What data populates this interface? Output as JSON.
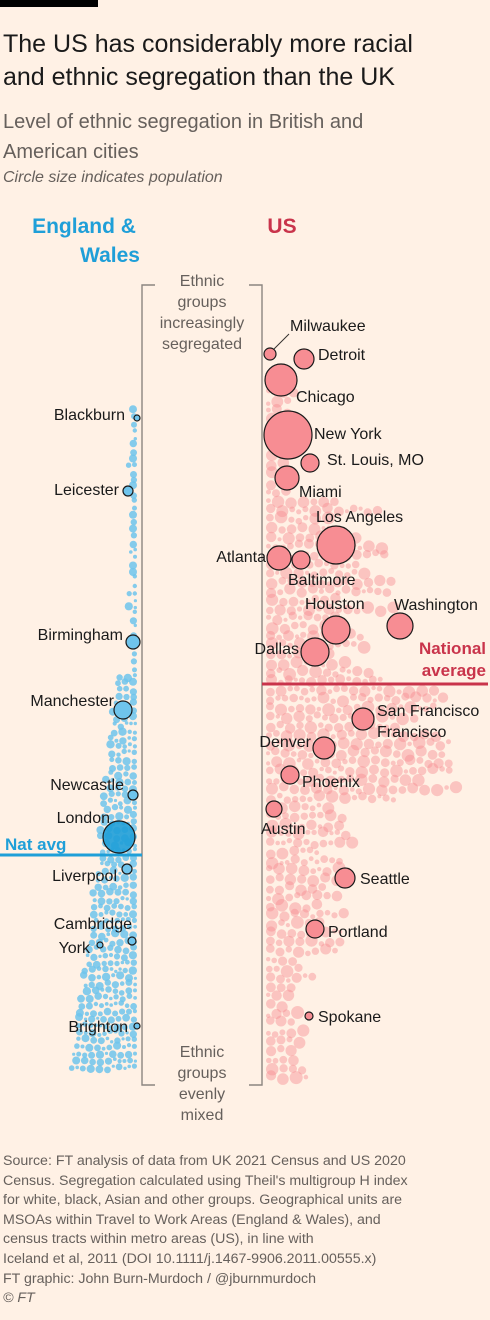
{
  "header": {
    "title_line1": "The US has considerably more racial",
    "title_line2": "and ethnic segregation than the UK",
    "subtitle_line1": "Level of ethnic segregation in British and",
    "subtitle_line2": "American cities",
    "note": "Circle size indicates population"
  },
  "chart_data": {
    "type": "scatter",
    "description_axis": "Vertical axis: segregation level (Theil's multigroup H index), top = more segregated",
    "panels": [
      {
        "name": "England & Wales",
        "name_line1": "England &",
        "name_line2": "Wales",
        "color": "#1F9FD8"
      },
      {
        "name": "US",
        "name_line1": "US",
        "color": "#C9344B"
      }
    ],
    "axis_labels": {
      "top": [
        "Ethnic",
        "groups",
        "increasingly",
        "segregated"
      ],
      "bottom": [
        "Ethnic",
        "groups",
        "evenly",
        "mixed"
      ]
    },
    "reference_lines": [
      {
        "panel": "England & Wales",
        "label": "Nat avg",
        "level": 0.3
      },
      {
        "panel": "US",
        "label_line1": "National",
        "label_line2": "average",
        "level": 0.5
      }
    ],
    "highlighted_cities": {
      "england_wales": [
        {
          "name": "Blackburn",
          "level": 0.78,
          "population": 0.03
        },
        {
          "name": "Leicester",
          "level": 0.7,
          "population": 0.1
        },
        {
          "name": "Birmingham",
          "level": 0.55,
          "population": 0.25
        },
        {
          "name": "Manchester",
          "level": 0.48,
          "population": 0.3
        },
        {
          "name": "Newcastle",
          "level": 0.37,
          "population": 0.1
        },
        {
          "name": "London",
          "level": 0.32,
          "population": 1.0
        },
        {
          "name": "Liverpool",
          "level": 0.27,
          "population": 0.09
        },
        {
          "name": "Cambridge",
          "level": 0.21,
          "population": 0.05
        },
        {
          "name": "York",
          "level": 0.2,
          "population": 0.03
        },
        {
          "name": "Brighton",
          "level": 0.1,
          "population": 0.02
        }
      ],
      "us": [
        {
          "name": "Milwaukee",
          "level": 0.85,
          "population": 0.1
        },
        {
          "name": "Detroit",
          "level": 0.84,
          "population": 0.25
        },
        {
          "name": "Chicago",
          "level": 0.81,
          "population": 0.52
        },
        {
          "name": "New York",
          "level": 0.76,
          "population": 1.0
        },
        {
          "name": "St. Louis, MO",
          "level": 0.74,
          "population": 0.17
        },
        {
          "name": "Miami",
          "level": 0.72,
          "population": 0.34
        },
        {
          "name": "Los Angeles",
          "level": 0.67,
          "population": 0.8
        },
        {
          "name": "Atlanta",
          "level": 0.66,
          "population": 0.33
        },
        {
          "name": "Baltimore",
          "level": 0.65,
          "population": 0.16
        },
        {
          "name": "Houston",
          "level": 0.57,
          "population": 0.4
        },
        {
          "name": "Washington",
          "level": 0.57,
          "population": 0.35
        },
        {
          "name": "Dallas",
          "level": 0.54,
          "population": 0.41
        },
        {
          "name": "San Francisco",
          "level": 0.46,
          "population": 0.3
        },
        {
          "name": "Denver",
          "level": 0.43,
          "population": 0.23
        },
        {
          "name": "Phoenix",
          "level": 0.39,
          "population": 0.24
        },
        {
          "name": "Austin",
          "level": 0.35,
          "population": 0.15
        },
        {
          "name": "Seattle",
          "level": 0.29,
          "population": 0.26
        },
        {
          "name": "Portland",
          "level": 0.24,
          "population": 0.21
        },
        {
          "name": "Spokane",
          "level": 0.14,
          "population": 0.04
        }
      ]
    },
    "colors": {
      "uk_fill": "#6FC4EC",
      "us_fill": "#F78D93",
      "uk_line": "#1F9FD8",
      "us_line": "#C9344B"
    }
  },
  "source": {
    "line1": "Source: FT analysis of data from UK 2021 Census and US 2020",
    "line2": "Census. Segregation calculated using Theil's multigroup H index",
    "line3": "for white, black, Asian and other groups. Geographical units are",
    "line4": "MSOAs within Travel to Work Areas (England & Wales), and",
    "line5": "census tracts within metro areas (US), in line with",
    "line6": "Iceland et al, 2011 (DOI 10.1111/j.1467-9906.2011.00555.x)",
    "line7": "FT graphic: John Burn-Murdoch / @jburnmurdoch",
    "line8": "© FT"
  }
}
